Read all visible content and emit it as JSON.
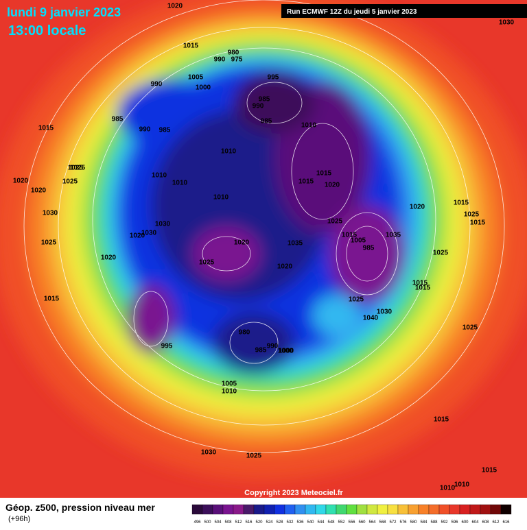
{
  "header": {
    "date": "lundi 9 janvier 2023",
    "time": "13:00 locale",
    "run": "Run ECMWF 12Z du jeudi 5 janvier 2023"
  },
  "footer": {
    "title": "Géop. z500, pression niveau mer",
    "lead": "(+96h)",
    "copyright": "Copyright 2023 Meteociel.fr"
  },
  "scale": {
    "labels": [
      496,
      500,
      504,
      508,
      512,
      516,
      520,
      524,
      528,
      532,
      536,
      540,
      544,
      548,
      552,
      556,
      560,
      564,
      568,
      572,
      576,
      580,
      584,
      588,
      592,
      596,
      600,
      604,
      608,
      612,
      616
    ],
    "colors": [
      "#2a0a3a",
      "#3c0f5a",
      "#5a107a",
      "#7a1490",
      "#8a1a8a",
      "#4a1a6a",
      "#1a1a8a",
      "#1020b0",
      "#1030e0",
      "#2060f0",
      "#3090f0",
      "#30b8f0",
      "#30d8e8",
      "#30e0b0",
      "#40d870",
      "#60e040",
      "#a0e040",
      "#d0e840",
      "#f0f040",
      "#f8e040",
      "#f8c038",
      "#f8a030",
      "#f88028",
      "#f46d2a",
      "#f05028",
      "#e8372a",
      "#d82020",
      "#c01818",
      "#a01010",
      "#700808",
      "#100000"
    ]
  },
  "isobars": [
    1020,
    1015,
    980,
    990,
    975,
    995,
    1005,
    1000,
    990,
    985,
    985,
    990,
    985,
    990,
    985,
    1010,
    1010,
    1015,
    1020,
    1010,
    1030,
    1025,
    1020,
    1025,
    1010,
    1015,
    1035,
    1020,
    1025,
    1015,
    1005,
    985,
    1030,
    1035,
    1040,
    1020,
    1015,
    1025,
    980,
    990,
    985,
    1000,
    995,
    1000,
    1005,
    1010,
    1030,
    1025,
    1015,
    1015,
    1010,
    1010,
    1015,
    1015,
    1020,
    1030,
    1025,
    1020,
    1025,
    1010,
    1020,
    1025,
    1030,
    1020,
    1015,
    1025,
    1030,
    1025,
    1015,
    1015,
    1025
  ]
}
